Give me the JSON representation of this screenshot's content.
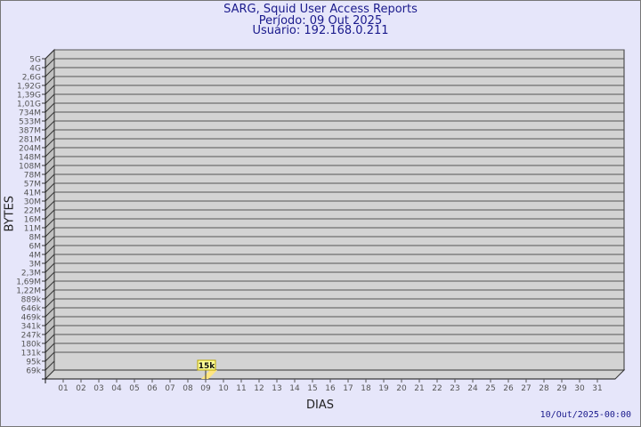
{
  "chart_data": {
    "type": "bar",
    "title": "SARG, Squid User Access Reports",
    "subtitle": [
      "Período: 09 Out 2025",
      "Usuário: 192.168.0.211"
    ],
    "xlabel": "DIAS",
    "ylabel": "BYTES",
    "y_scale": "log",
    "y_ticks": [
      "69k",
      "95k",
      "131k",
      "180k",
      "247k",
      "341k",
      "469k",
      "646k",
      "889k",
      "1,22M",
      "1,69M",
      "2,3M",
      "3M",
      "4M",
      "6M",
      "8M",
      "11M",
      "16M",
      "22M",
      "30M",
      "41M",
      "57M",
      "78M",
      "108M",
      "148M",
      "204M",
      "281M",
      "387M",
      "533M",
      "734M",
      "1,01G",
      "1,39G",
      "1,92G",
      "2,6G",
      "4G",
      "5G"
    ],
    "categories": [
      "01",
      "02",
      "03",
      "04",
      "05",
      "06",
      "07",
      "08",
      "09",
      "10",
      "11",
      "12",
      "13",
      "14",
      "15",
      "16",
      "17",
      "18",
      "19",
      "20",
      "21",
      "22",
      "23",
      "24",
      "25",
      "26",
      "27",
      "28",
      "29",
      "30",
      "31"
    ],
    "series": [
      {
        "values": [
          null,
          null,
          null,
          null,
          null,
          null,
          null,
          null,
          15000,
          null,
          null,
          null,
          null,
          null,
          null,
          null,
          null,
          null,
          null,
          null,
          null,
          null,
          null,
          null,
          null,
          null,
          null,
          null,
          null,
          null,
          null
        ]
      }
    ],
    "data_labels": {
      "09": "15k"
    },
    "grid": true,
    "three_d": true,
    "colors": {
      "background": "#e6e6fa",
      "plot": "#d3d3d3",
      "bar": "#ffe680",
      "label_bg": "#ffff99",
      "text": "#1a1a8c",
      "axis_text": "#555555"
    }
  },
  "footer": {
    "timestamp": "10/Out/2025-00:00"
  }
}
